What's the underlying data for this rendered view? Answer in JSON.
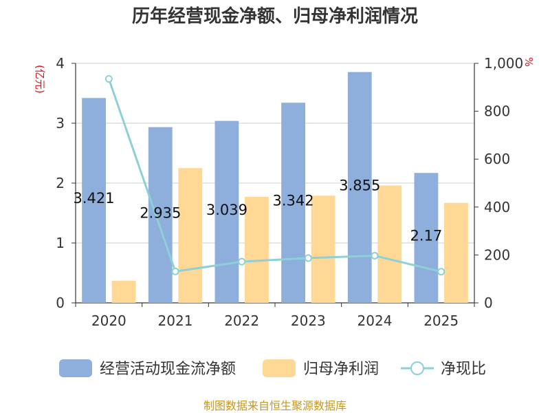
{
  "title": "历年经营现金净额、归母净利润情况",
  "source": "制图数据来自恒生聚源数据库",
  "colors": {
    "cash": "#8eaedb",
    "profit": "#ffd896",
    "ratio": "#8dd0d6",
    "unit": "#e0101a",
    "source": "#c8961a",
    "grid": "#cccccc",
    "axis": "#333333"
  },
  "chart_data": {
    "type": "bar",
    "title": "历年经营现金净额、归母净利润情况",
    "categories": [
      "2020",
      "2021",
      "2022",
      "2023",
      "2024",
      "2025"
    ],
    "y_left": {
      "unit": "(亿元)",
      "ylim": [
        0,
        4
      ],
      "ticks": [
        "0",
        "1",
        "2",
        "3",
        "4"
      ]
    },
    "y_right": {
      "unit": "%",
      "ylim": [
        0,
        1000
      ],
      "ticks": [
        "0",
        "200",
        "400",
        "600",
        "800",
        "1,000"
      ]
    },
    "series": [
      {
        "name": "经营活动现金流净额",
        "type": "bar",
        "axis": "left",
        "values": [
          3.421,
          2.935,
          3.039,
          3.342,
          3.855,
          2.17
        ],
        "labels": [
          "3.421",
          "2.935",
          "3.039",
          "3.342",
          "3.855",
          "2.17"
        ]
      },
      {
        "name": "归母净利润",
        "type": "bar",
        "axis": "left",
        "values": [
          0.37,
          2.25,
          1.77,
          1.79,
          1.96,
          1.67
        ]
      },
      {
        "name": "净现比",
        "type": "line",
        "axis": "right",
        "values": [
          935,
          131,
          172,
          187,
          197,
          130
        ]
      }
    ],
    "legend": "bottom",
    "grid": true
  }
}
